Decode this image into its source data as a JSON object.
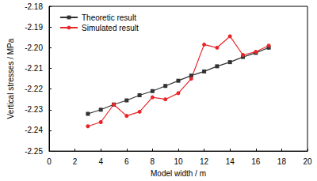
{
  "chart_data": {
    "type": "line",
    "x_label": "Model width / m",
    "y_label": "Vertical stresses / MPa",
    "xlim": [
      0,
      20
    ],
    "xticks": [
      0,
      2,
      4,
      6,
      8,
      10,
      12,
      14,
      16,
      18,
      20
    ],
    "ylim": [
      -2.25,
      -2.18
    ],
    "yticks": [
      -2.25,
      -2.24,
      -2.23,
      -2.22,
      -2.21,
      {
        "value": -2.2,
        "label": "-2.20"
      },
      -2.19,
      -2.18
    ],
    "grid": false,
    "legend": "upper left",
    "series": [
      {
        "name": "Theoretic result",
        "color": "#333333",
        "marker": "square",
        "line_style": "solid",
        "x": [
          3,
          4,
          5,
          6,
          7,
          8,
          9,
          10,
          11,
          12,
          13,
          14,
          15,
          16,
          17
        ],
        "values": [
          -2.232,
          -2.23,
          -2.2275,
          -2.2255,
          -2.223,
          -2.221,
          -2.2185,
          -2.216,
          -2.2135,
          -2.2115,
          -2.209,
          -2.207,
          -2.2045,
          -2.2025,
          -2.2
        ]
      },
      {
        "name": "Simulated result",
        "color": "#e8262a",
        "marker": "circle",
        "line_style": "solid",
        "x": [
          3,
          4,
          5,
          6,
          7,
          8,
          9,
          10,
          11,
          12,
          13,
          14,
          15,
          16,
          17
        ],
        "values": [
          -2.238,
          -2.236,
          -2.2275,
          -2.233,
          -2.231,
          -2.224,
          -2.225,
          -2.222,
          -2.215,
          -2.1985,
          -2.2,
          -2.1945,
          -2.2035,
          -2.202,
          -2.199
        ]
      }
    ]
  }
}
